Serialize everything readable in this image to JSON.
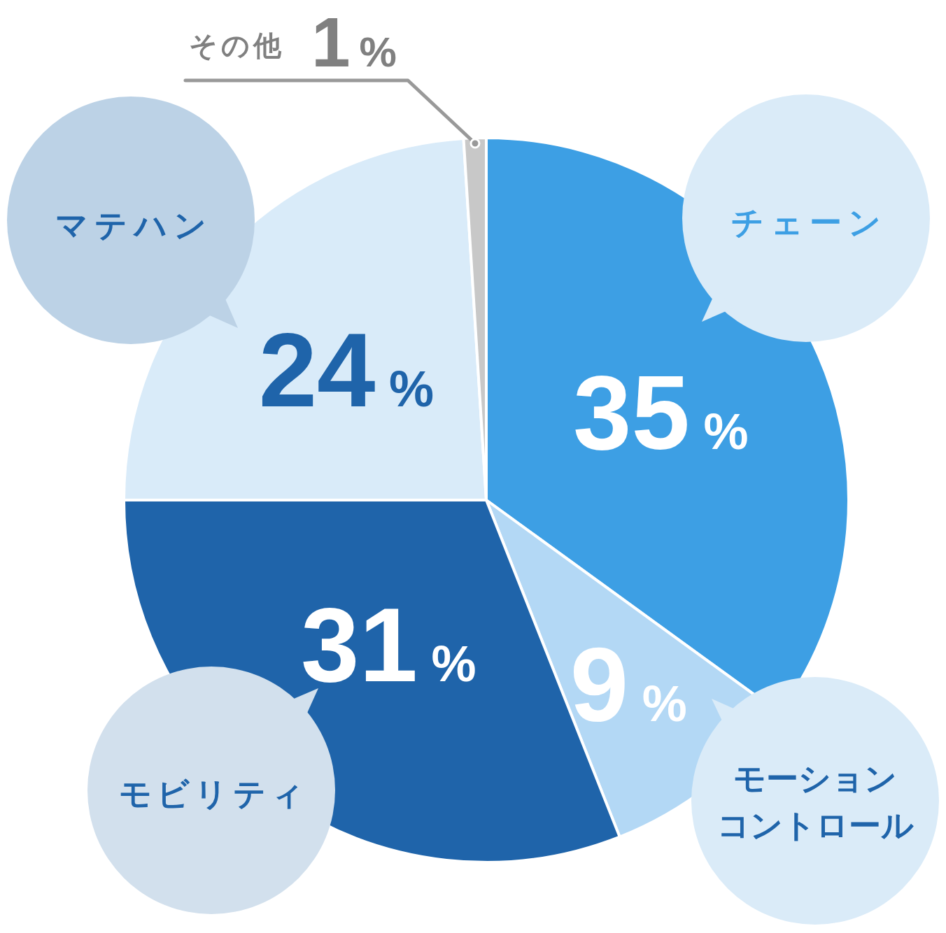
{
  "chart_data": {
    "type": "pie",
    "categories": [
      "チェーン",
      "モーションコントロール",
      "モビリティ",
      "マテハン",
      "その他"
    ],
    "values": [
      35,
      9,
      31,
      24,
      1
    ],
    "colors": [
      "#3d9fe4",
      "#b3d8f5",
      "#1f64aa",
      "#d9ebf9",
      "#c8c8c8"
    ],
    "value_labels": [
      "35%",
      "9%",
      "31%",
      "24%",
      "1%"
    ]
  }
}
